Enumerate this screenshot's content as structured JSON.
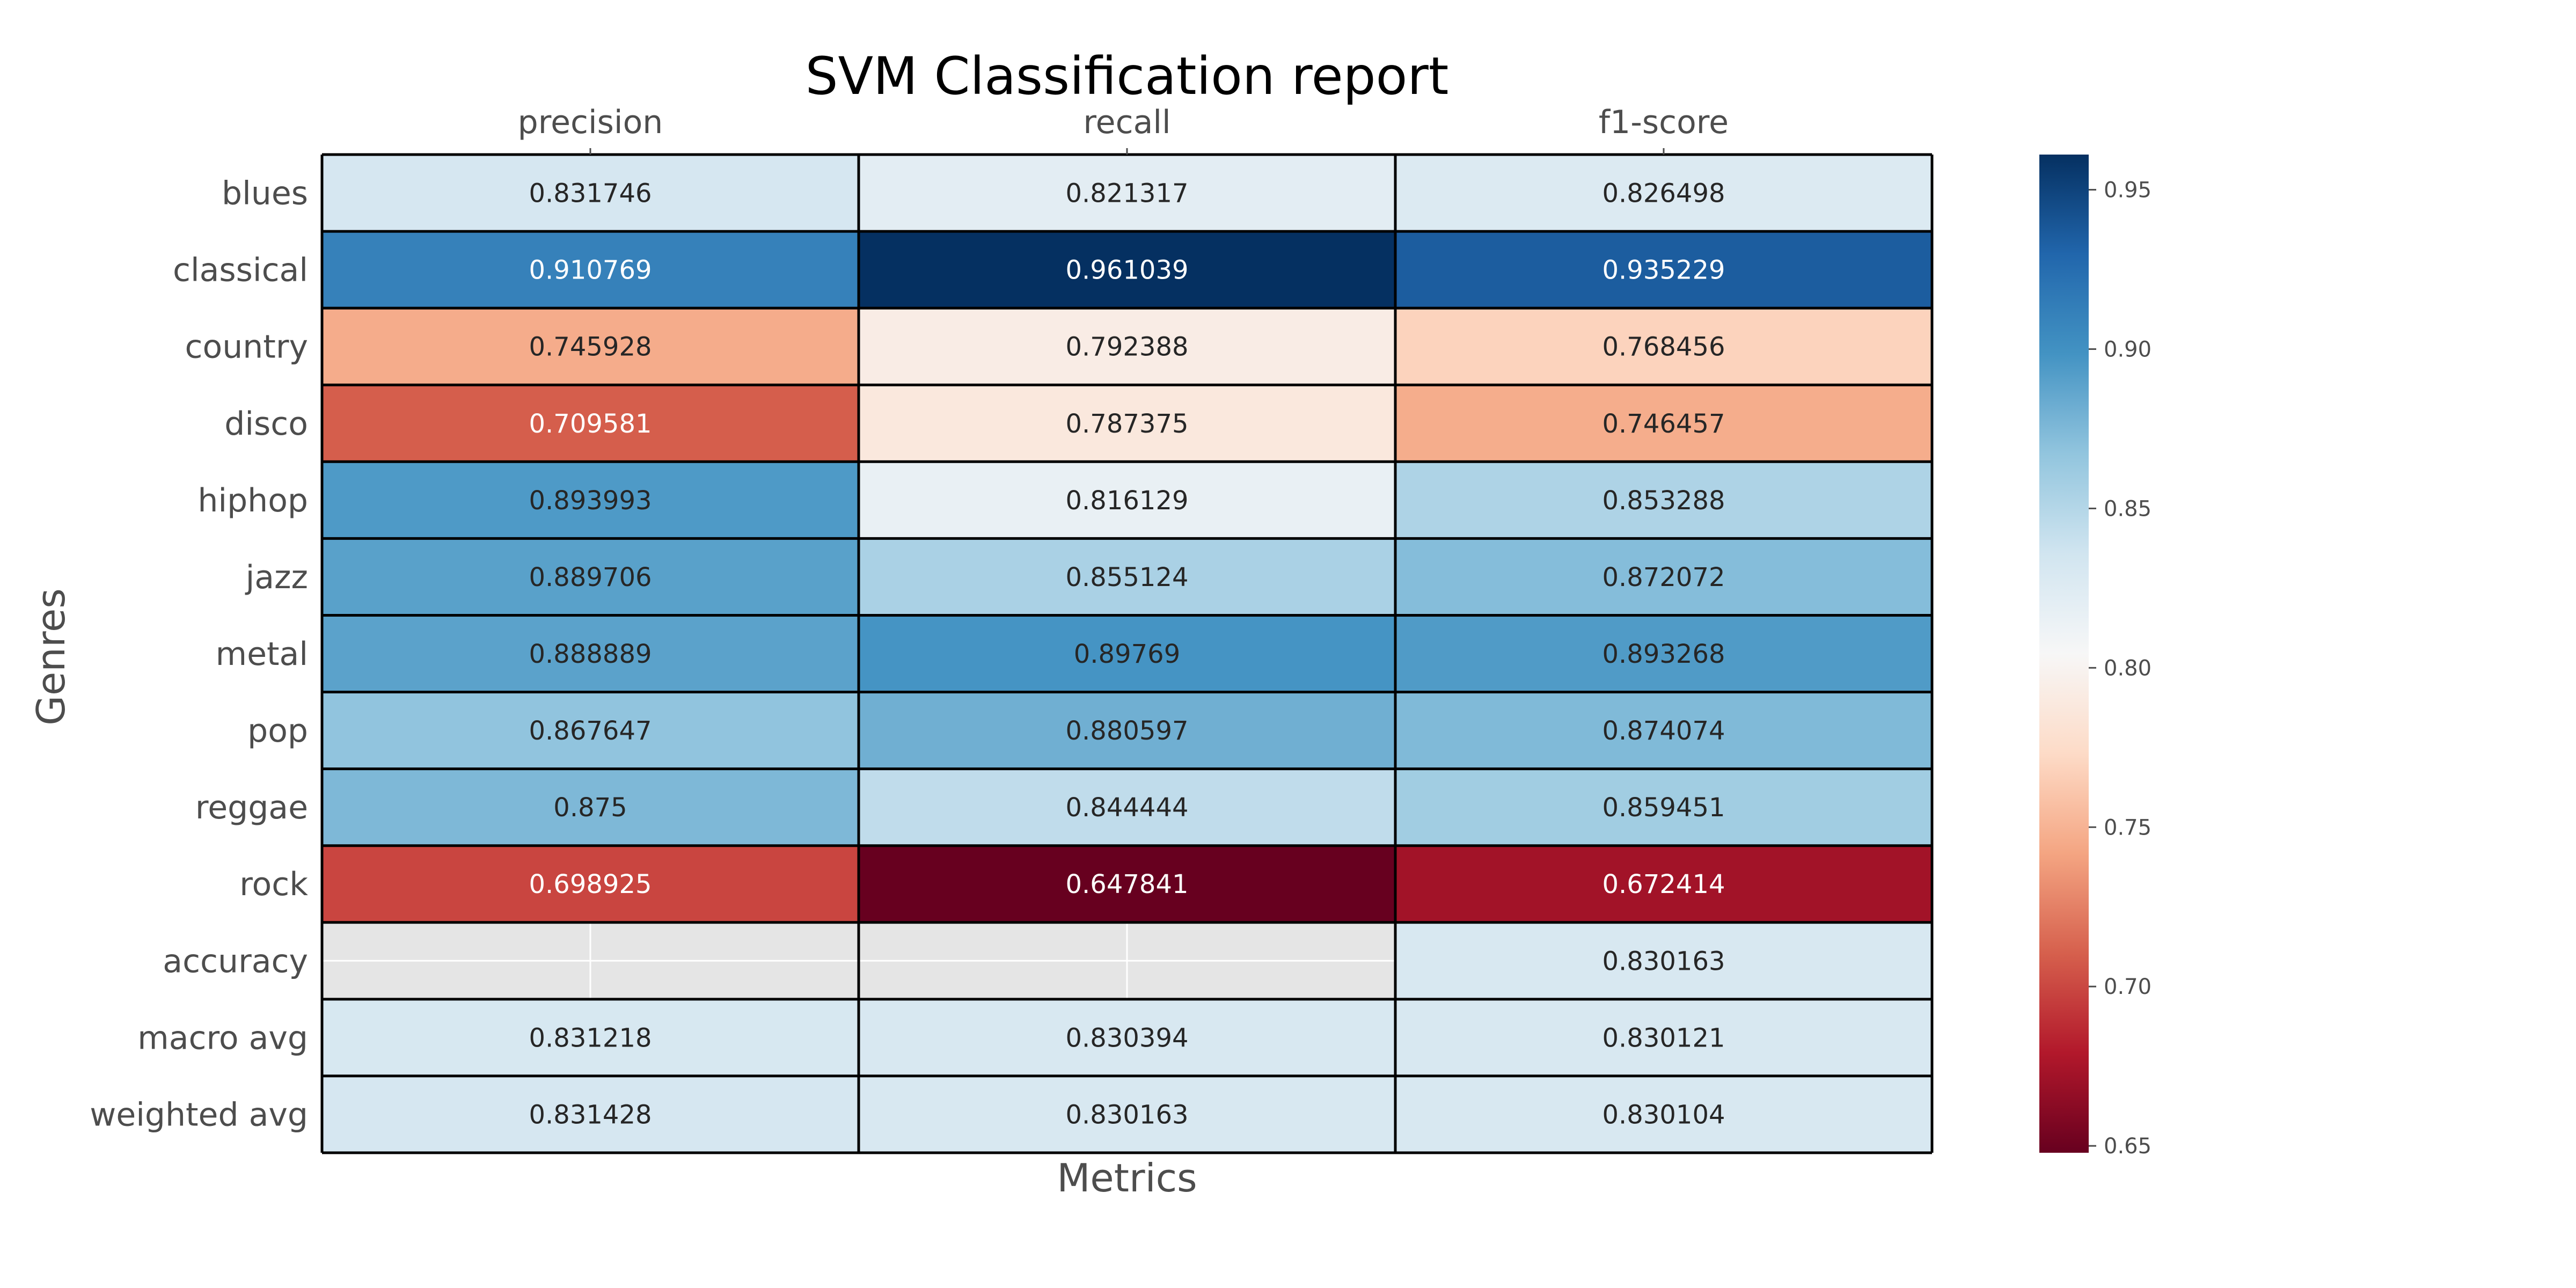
{
  "chart_data": {
    "type": "heatmap",
    "title": "SVM Classification report",
    "xlabel": "Metrics",
    "ylabel": "Genres",
    "x_tick_position": "top",
    "columns": [
      "precision",
      "recall",
      "f1-score"
    ],
    "rows": [
      "blues",
      "classical",
      "country",
      "disco",
      "hiphop",
      "jazz",
      "metal",
      "pop",
      "reggae",
      "rock",
      "accuracy",
      "macro avg",
      "weighted avg"
    ],
    "values": [
      [
        0.831746,
        0.821317,
        0.826498
      ],
      [
        0.910769,
        0.961039,
        0.935229
      ],
      [
        0.745928,
        0.792388,
        0.768456
      ],
      [
        0.709581,
        0.787375,
        0.746457
      ],
      [
        0.893993,
        0.816129,
        0.853288
      ],
      [
        0.889706,
        0.855124,
        0.872072
      ],
      [
        0.888889,
        0.89769,
        0.893268
      ],
      [
        0.867647,
        0.880597,
        0.874074
      ],
      [
        0.875,
        0.844444,
        0.859451
      ],
      [
        0.698925,
        0.647841,
        0.672414
      ],
      [
        null,
        null,
        0.830163
      ],
      [
        0.831218,
        0.830394,
        0.830121
      ],
      [
        0.831428,
        0.830163,
        0.830104
      ]
    ],
    "colormap": "RdBu",
    "vmin": 0.647841,
    "vmax": 0.961039,
    "missing_color": "#e5e5e5",
    "colorbar": {
      "position": "right",
      "ticks": [
        0.65,
        0.7,
        0.75,
        0.8,
        0.85,
        0.9,
        0.95
      ],
      "tick_labels": [
        "0.65",
        "0.70",
        "0.75",
        "0.80",
        "0.85",
        "0.90",
        "0.95"
      ]
    }
  }
}
